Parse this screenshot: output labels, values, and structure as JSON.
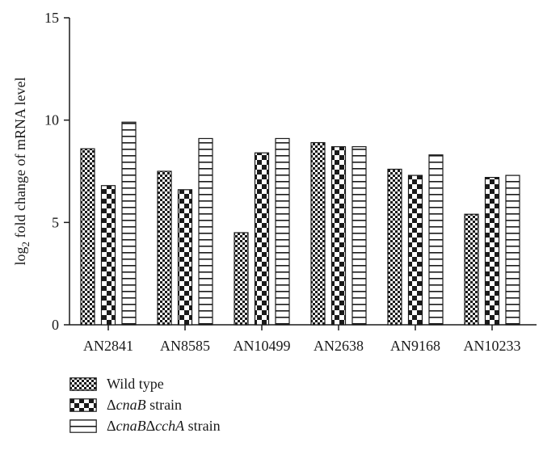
{
  "chart_data": {
    "type": "bar",
    "title": "",
    "xlabel": "",
    "ylabel_main": "log",
    "ylabel_sub": "2",
    "ylabel_rest": " fold change of mRNA level",
    "ylim": [
      0,
      15
    ],
    "yticks": [
      0,
      5,
      10,
      15
    ],
    "categories": [
      "AN2841",
      "AN8585",
      "AN10499",
      "AN2638",
      "AN9168",
      "AN10233"
    ],
    "series": [
      {
        "name": "Wild type",
        "pattern": "fine-checker",
        "values": [
          8.6,
          7.5,
          4.5,
          8.9,
          7.6,
          5.4
        ]
      },
      {
        "name": "ΔcnaB strain",
        "pattern": "coarse-checker",
        "values": [
          6.8,
          6.6,
          8.4,
          8.7,
          7.3,
          7.2
        ]
      },
      {
        "name": "ΔcnaBΔcchA strain",
        "pattern": "horizontal-stripes",
        "values": [
          9.9,
          9.1,
          9.1,
          8.7,
          8.3,
          7.3
        ]
      }
    ],
    "legend_position": "bottom-left",
    "colors": {
      "ink": "#1a1a1a",
      "background": "#ffffff"
    }
  },
  "legend": {
    "items": [
      {
        "parts": [
          {
            "text": "Wild type",
            "italic": false
          }
        ]
      },
      {
        "parts": [
          {
            "text": "Δ",
            "italic": false
          },
          {
            "text": "cnaB",
            "italic": true
          },
          {
            "text": " strain",
            "italic": false
          }
        ]
      },
      {
        "parts": [
          {
            "text": "Δ",
            "italic": false
          },
          {
            "text": "cnaB",
            "italic": true
          },
          {
            "text": "Δ",
            "italic": false
          },
          {
            "text": "cchA",
            "italic": true
          },
          {
            "text": " strain",
            "italic": false
          }
        ]
      }
    ]
  }
}
